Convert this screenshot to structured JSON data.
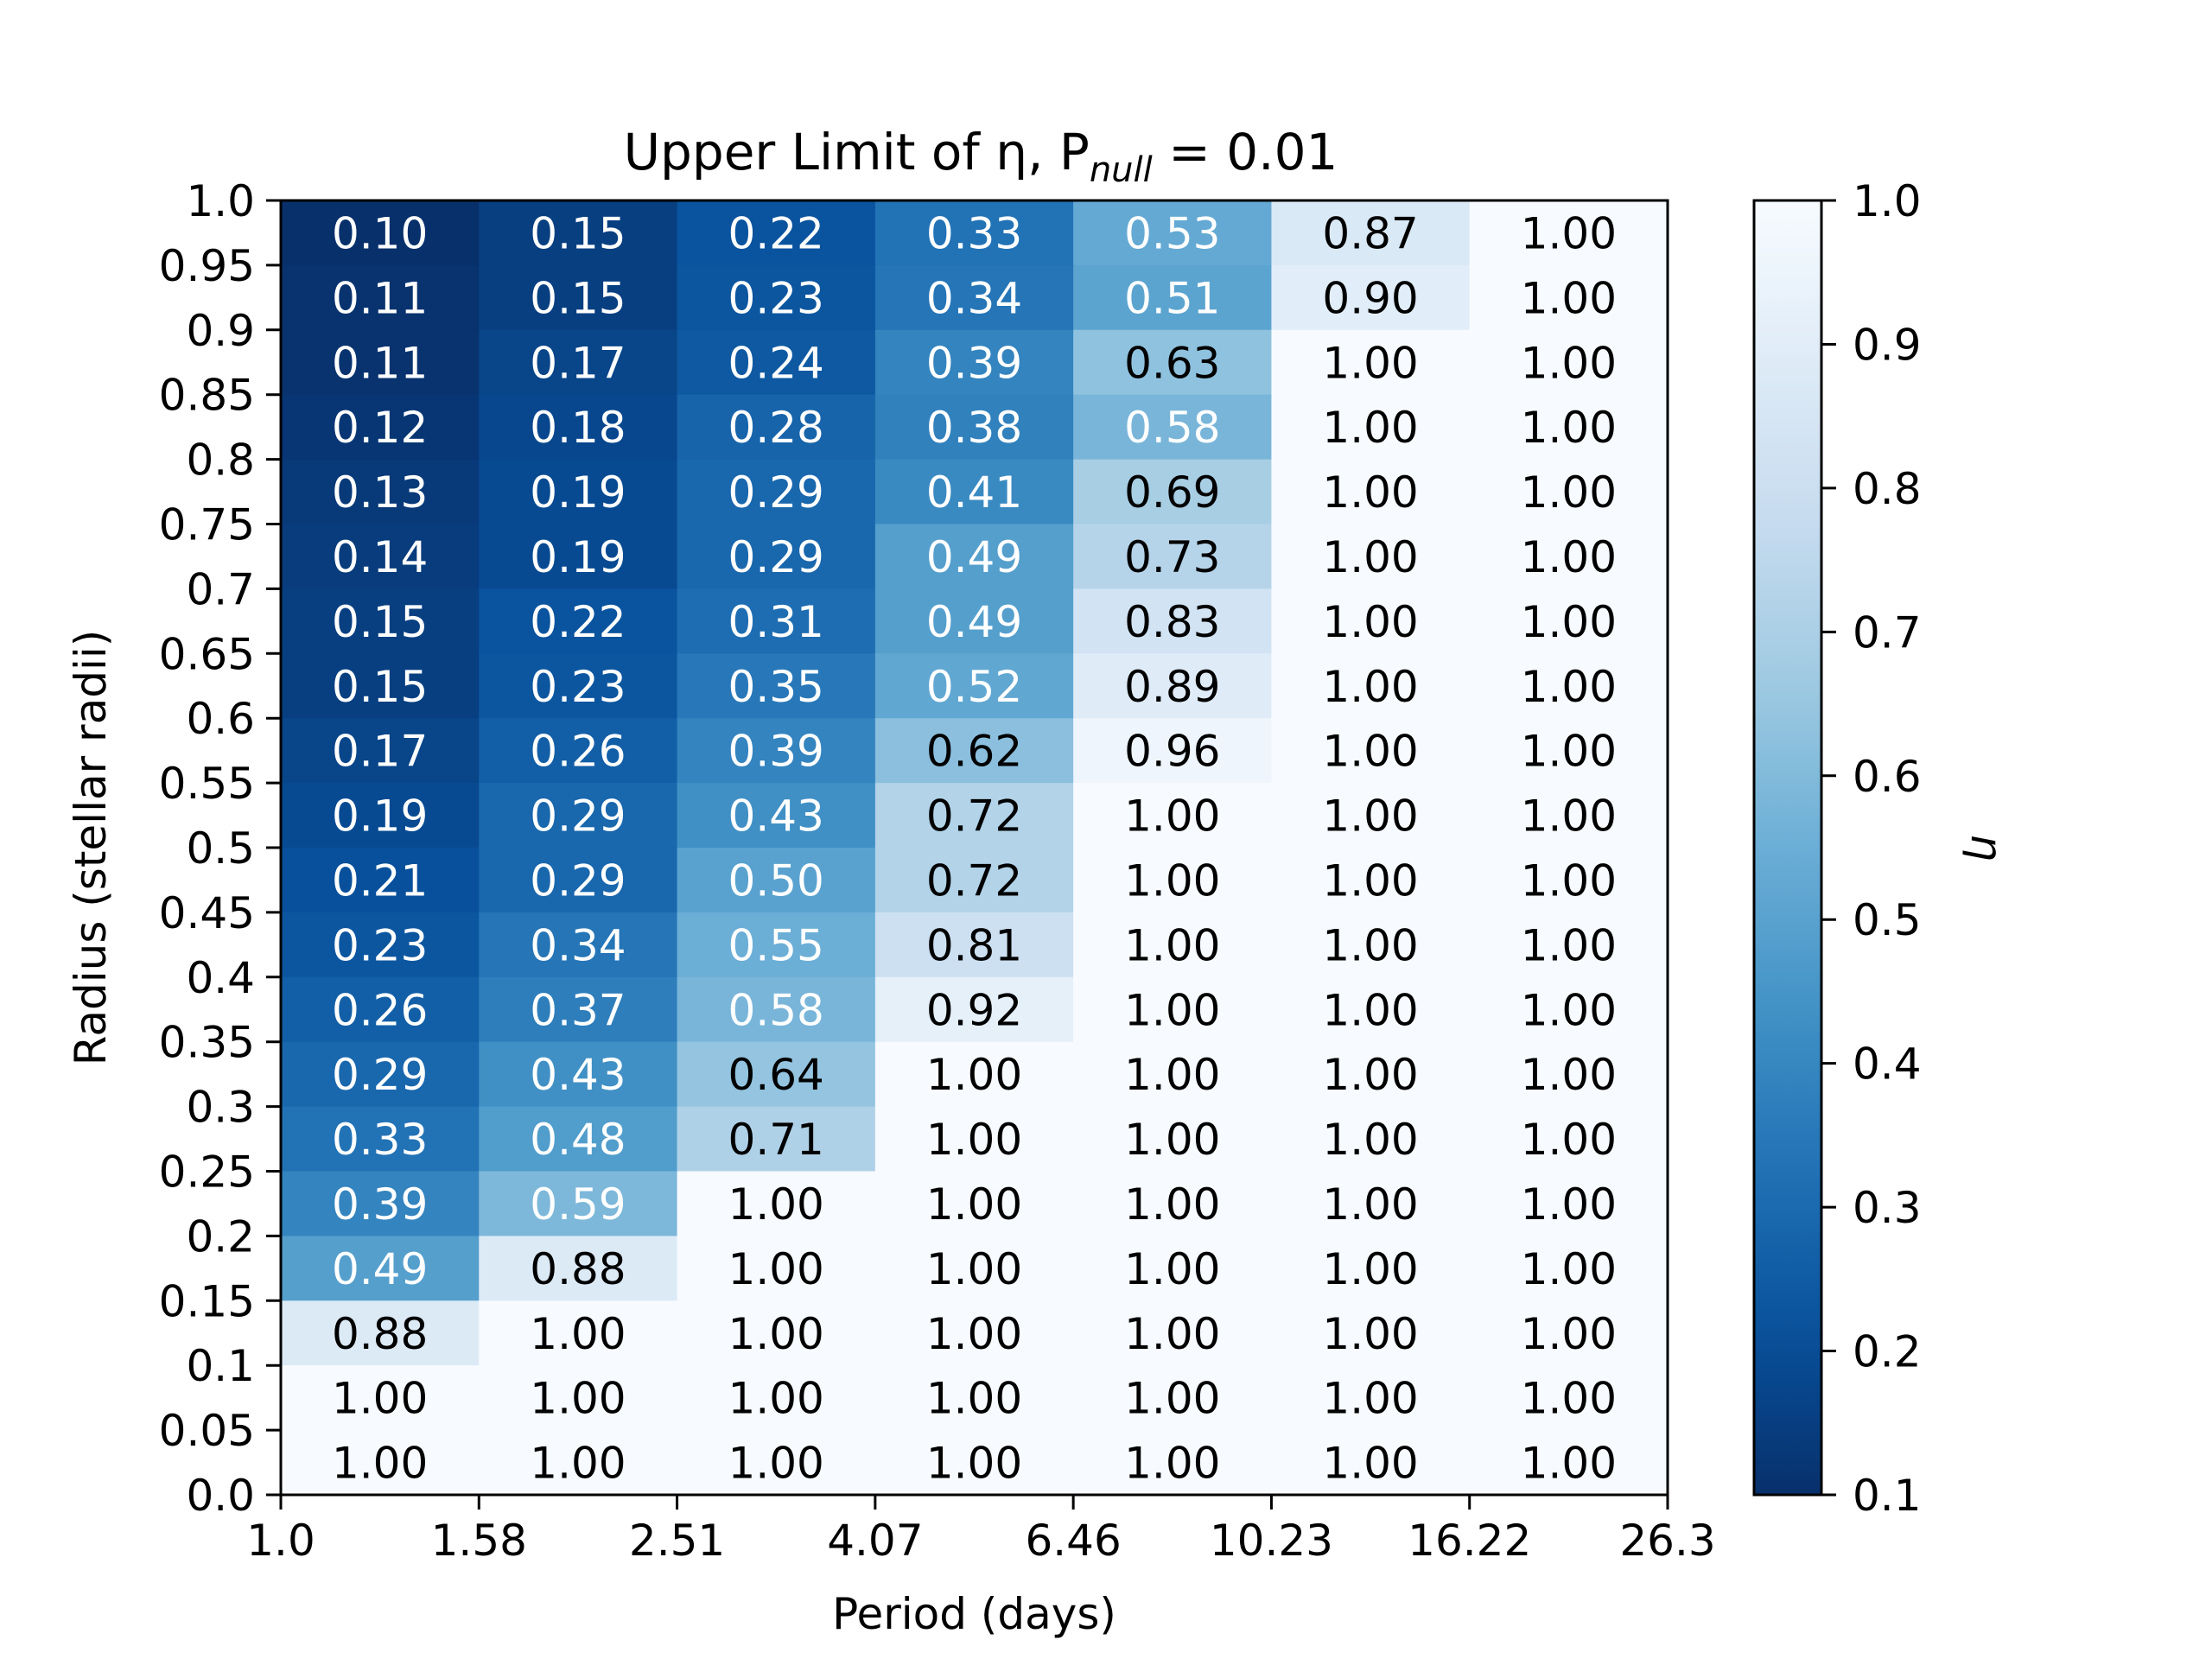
{
  "chart_data": {
    "type": "heatmap",
    "title": "Upper Limit of η, P",
    "title_subscript": "null",
    "title_suffix": " = 0.01",
    "xlabel": "Period (days)",
    "ylabel": "Radius (stellar radii)",
    "colorbar_label": "η",
    "colormap": "Blues_r",
    "color_range": [
      0.1,
      1.0
    ],
    "colorbar_ticks": [
      "0.1",
      "0.2",
      "0.3",
      "0.4",
      "0.5",
      "0.6",
      "0.7",
      "0.8",
      "0.9",
      "1.0"
    ],
    "x_edges": [
      "1.0",
      "1.58",
      "2.51",
      "4.07",
      "6.46",
      "10.23",
      "16.22",
      "26.3"
    ],
    "y_edges": [
      "0.0",
      "0.05",
      "0.1",
      "0.15",
      "0.2",
      "0.25",
      "0.3",
      "0.35",
      "0.4",
      "0.45",
      "0.5",
      "0.55",
      "0.6",
      "0.65",
      "0.7",
      "0.75",
      "0.8",
      "0.85",
      "0.9",
      "0.95",
      "1.0"
    ],
    "rows_top_to_bottom": [
      [
        "0.10",
        "0.15",
        "0.22",
        "0.33",
        "0.53",
        "0.87",
        "1.00"
      ],
      [
        "0.11",
        "0.15",
        "0.23",
        "0.34",
        "0.51",
        "0.90",
        "1.00"
      ],
      [
        "0.11",
        "0.17",
        "0.24",
        "0.39",
        "0.63",
        "1.00",
        "1.00"
      ],
      [
        "0.12",
        "0.18",
        "0.28",
        "0.38",
        "0.58",
        "1.00",
        "1.00"
      ],
      [
        "0.13",
        "0.19",
        "0.29",
        "0.41",
        "0.69",
        "1.00",
        "1.00"
      ],
      [
        "0.14",
        "0.19",
        "0.29",
        "0.49",
        "0.73",
        "1.00",
        "1.00"
      ],
      [
        "0.15",
        "0.22",
        "0.31",
        "0.49",
        "0.83",
        "1.00",
        "1.00"
      ],
      [
        "0.15",
        "0.23",
        "0.35",
        "0.52",
        "0.89",
        "1.00",
        "1.00"
      ],
      [
        "0.17",
        "0.26",
        "0.39",
        "0.62",
        "0.96",
        "1.00",
        "1.00"
      ],
      [
        "0.19",
        "0.29",
        "0.43",
        "0.72",
        "1.00",
        "1.00",
        "1.00"
      ],
      [
        "0.21",
        "0.29",
        "0.50",
        "0.72",
        "1.00",
        "1.00",
        "1.00"
      ],
      [
        "0.23",
        "0.34",
        "0.55",
        "0.81",
        "1.00",
        "1.00",
        "1.00"
      ],
      [
        "0.26",
        "0.37",
        "0.58",
        "0.92",
        "1.00",
        "1.00",
        "1.00"
      ],
      [
        "0.29",
        "0.43",
        "0.64",
        "1.00",
        "1.00",
        "1.00",
        "1.00"
      ],
      [
        "0.33",
        "0.48",
        "0.71",
        "1.00",
        "1.00",
        "1.00",
        "1.00"
      ],
      [
        "0.39",
        "0.59",
        "1.00",
        "1.00",
        "1.00",
        "1.00",
        "1.00"
      ],
      [
        "0.49",
        "0.88",
        "1.00",
        "1.00",
        "1.00",
        "1.00",
        "1.00"
      ],
      [
        "0.88",
        "1.00",
        "1.00",
        "1.00",
        "1.00",
        "1.00",
        "1.00"
      ],
      [
        "1.00",
        "1.00",
        "1.00",
        "1.00",
        "1.00",
        "1.00",
        "1.00"
      ],
      [
        "1.00",
        "1.00",
        "1.00",
        "1.00",
        "1.00",
        "1.00",
        "1.00"
      ]
    ],
    "dark_text_threshold": 0.6
  }
}
